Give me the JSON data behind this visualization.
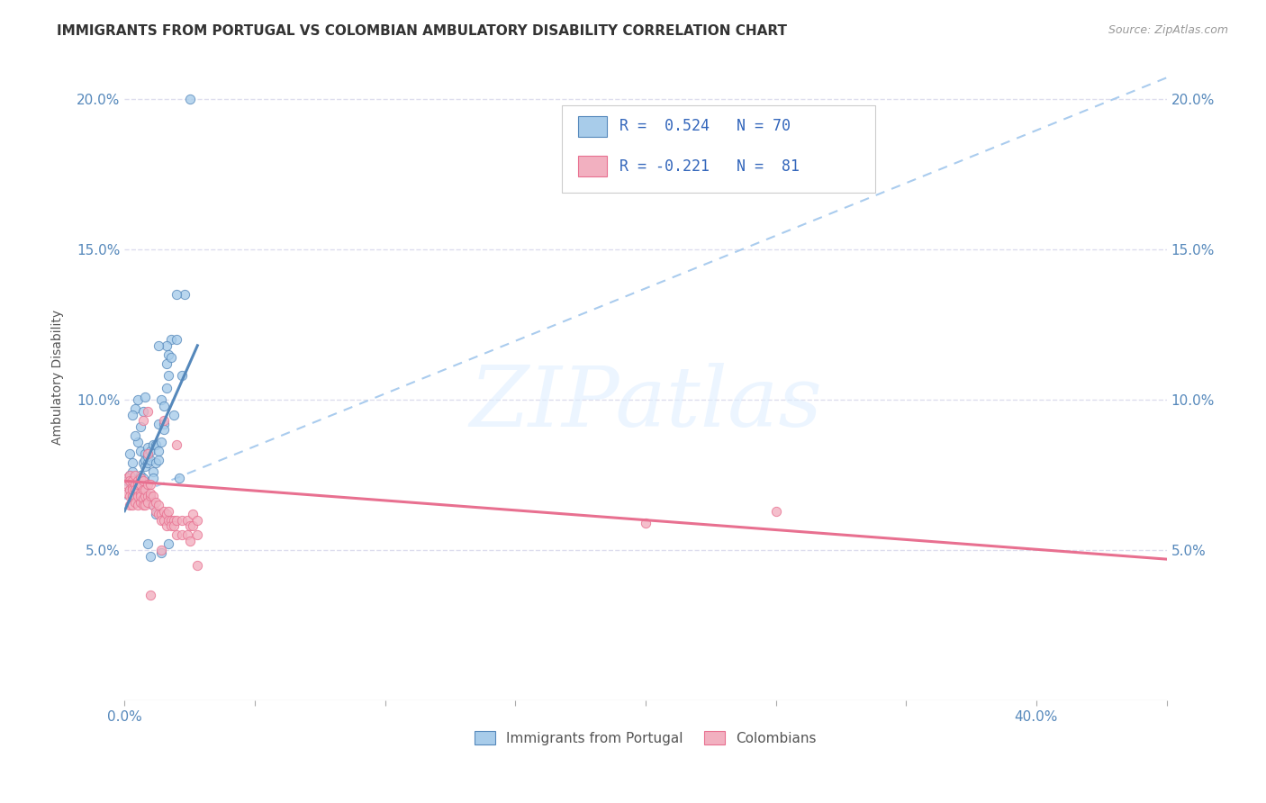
{
  "title": "IMMIGRANTS FROM PORTUGAL VS COLOMBIAN AMBULATORY DISABILITY CORRELATION CHART",
  "source": "Source: ZipAtlas.com",
  "ylabel": "Ambulatory Disability",
  "watermark": "ZIPatlas",
  "x_min": 0.0,
  "x_max": 0.4,
  "y_min": 0.0,
  "y_max": 0.215,
  "x_ticks_labeled": [
    0.0,
    0.4
  ],
  "x_ticks_labeled_str": [
    "0.0%",
    "40.0%"
  ],
  "x_ticks_minor": [
    0.05,
    0.1,
    0.15,
    0.2,
    0.25,
    0.3,
    0.35
  ],
  "y_ticks": [
    0.05,
    0.1,
    0.15,
    0.2
  ],
  "y_tick_labels": [
    "5.0%",
    "10.0%",
    "15.0%",
    "20.0%"
  ],
  "color_blue": "#A8CCEA",
  "color_pink": "#F2B0C0",
  "color_blue_line": "#5588BB",
  "color_pink_line": "#E87090",
  "color_dashed": "#AACCEE",
  "scatter_blue": [
    [
      0.001,
      0.073
    ],
    [
      0.002,
      0.075
    ],
    [
      0.002,
      0.07
    ],
    [
      0.002,
      0.082
    ],
    [
      0.003,
      0.074
    ],
    [
      0.003,
      0.076
    ],
    [
      0.003,
      0.079
    ],
    [
      0.004,
      0.073
    ],
    [
      0.004,
      0.069
    ],
    [
      0.004,
      0.097
    ],
    [
      0.004,
      0.071
    ],
    [
      0.005,
      0.1
    ],
    [
      0.005,
      0.07
    ],
    [
      0.005,
      0.068
    ],
    [
      0.006,
      0.083
    ],
    [
      0.006,
      0.072
    ],
    [
      0.006,
      0.075
    ],
    [
      0.007,
      0.079
    ],
    [
      0.007,
      0.074
    ],
    [
      0.007,
      0.07
    ],
    [
      0.008,
      0.082
    ],
    [
      0.008,
      0.078
    ],
    [
      0.008,
      0.08
    ],
    [
      0.009,
      0.079
    ],
    [
      0.009,
      0.081
    ],
    [
      0.009,
      0.084
    ],
    [
      0.01,
      0.083
    ],
    [
      0.01,
      0.068
    ],
    [
      0.01,
      0.08
    ],
    [
      0.011,
      0.085
    ],
    [
      0.011,
      0.076
    ],
    [
      0.011,
      0.074
    ],
    [
      0.012,
      0.085
    ],
    [
      0.012,
      0.079
    ],
    [
      0.013,
      0.083
    ],
    [
      0.013,
      0.092
    ],
    [
      0.013,
      0.08
    ],
    [
      0.014,
      0.086
    ],
    [
      0.014,
      0.1
    ],
    [
      0.015,
      0.092
    ],
    [
      0.015,
      0.098
    ],
    [
      0.015,
      0.09
    ],
    [
      0.016,
      0.104
    ],
    [
      0.016,
      0.112
    ],
    [
      0.017,
      0.115
    ],
    [
      0.017,
      0.108
    ],
    [
      0.018,
      0.12
    ],
    [
      0.018,
      0.114
    ],
    [
      0.019,
      0.095
    ],
    [
      0.02,
      0.12
    ],
    [
      0.021,
      0.074
    ],
    [
      0.022,
      0.108
    ],
    [
      0.023,
      0.135
    ],
    [
      0.025,
      0.2
    ],
    [
      0.009,
      0.052
    ],
    [
      0.01,
      0.048
    ],
    [
      0.016,
      0.118
    ],
    [
      0.02,
      0.135
    ],
    [
      0.007,
      0.096
    ],
    [
      0.008,
      0.101
    ],
    [
      0.013,
      0.118
    ],
    [
      0.006,
      0.091
    ],
    [
      0.005,
      0.086
    ],
    [
      0.003,
      0.095
    ],
    [
      0.004,
      0.088
    ],
    [
      0.014,
      0.049
    ],
    [
      0.017,
      0.052
    ],
    [
      0.011,
      0.065
    ],
    [
      0.012,
      0.062
    ],
    [
      0.006,
      0.067
    ],
    [
      0.007,
      0.066
    ]
  ],
  "scatter_pink": [
    [
      0.001,
      0.072
    ],
    [
      0.001,
      0.069
    ],
    [
      0.001,
      0.074
    ],
    [
      0.002,
      0.07
    ],
    [
      0.002,
      0.068
    ],
    [
      0.002,
      0.075
    ],
    [
      0.002,
      0.073
    ],
    [
      0.002,
      0.065
    ],
    [
      0.003,
      0.071
    ],
    [
      0.003,
      0.068
    ],
    [
      0.003,
      0.073
    ],
    [
      0.003,
      0.07
    ],
    [
      0.003,
      0.065
    ],
    [
      0.004,
      0.072
    ],
    [
      0.004,
      0.068
    ],
    [
      0.004,
      0.075
    ],
    [
      0.004,
      0.07
    ],
    [
      0.004,
      0.066
    ],
    [
      0.005,
      0.07
    ],
    [
      0.005,
      0.073
    ],
    [
      0.005,
      0.068
    ],
    [
      0.005,
      0.065
    ],
    [
      0.005,
      0.072
    ],
    [
      0.006,
      0.069
    ],
    [
      0.006,
      0.066
    ],
    [
      0.006,
      0.072
    ],
    [
      0.006,
      0.074
    ],
    [
      0.006,
      0.068
    ],
    [
      0.007,
      0.07
    ],
    [
      0.007,
      0.073
    ],
    [
      0.007,
      0.067
    ],
    [
      0.007,
      0.065
    ],
    [
      0.007,
      0.093
    ],
    [
      0.008,
      0.068
    ],
    [
      0.008,
      0.07
    ],
    [
      0.008,
      0.065
    ],
    [
      0.009,
      0.068
    ],
    [
      0.009,
      0.066
    ],
    [
      0.009,
      0.072
    ],
    [
      0.01,
      0.068
    ],
    [
      0.01,
      0.072
    ],
    [
      0.01,
      0.069
    ],
    [
      0.011,
      0.065
    ],
    [
      0.011,
      0.068
    ],
    [
      0.012,
      0.063
    ],
    [
      0.012,
      0.066
    ],
    [
      0.013,
      0.062
    ],
    [
      0.013,
      0.065
    ],
    [
      0.014,
      0.062
    ],
    [
      0.014,
      0.06
    ],
    [
      0.015,
      0.063
    ],
    [
      0.015,
      0.06
    ],
    [
      0.016,
      0.062
    ],
    [
      0.016,
      0.058
    ],
    [
      0.017,
      0.063
    ],
    [
      0.017,
      0.06
    ],
    [
      0.018,
      0.06
    ],
    [
      0.018,
      0.058
    ],
    [
      0.019,
      0.06
    ],
    [
      0.019,
      0.058
    ],
    [
      0.02,
      0.06
    ],
    [
      0.02,
      0.055
    ],
    [
      0.022,
      0.06
    ],
    [
      0.022,
      0.055
    ],
    [
      0.024,
      0.06
    ],
    [
      0.024,
      0.055
    ],
    [
      0.025,
      0.058
    ],
    [
      0.025,
      0.053
    ],
    [
      0.026,
      0.062
    ],
    [
      0.026,
      0.058
    ],
    [
      0.028,
      0.06
    ],
    [
      0.028,
      0.055
    ],
    [
      0.009,
      0.082
    ],
    [
      0.009,
      0.096
    ],
    [
      0.02,
      0.085
    ],
    [
      0.015,
      0.093
    ],
    [
      0.01,
      0.035
    ],
    [
      0.2,
      0.059
    ],
    [
      0.25,
      0.063
    ],
    [
      0.028,
      0.045
    ],
    [
      0.014,
      0.05
    ]
  ],
  "blue_line_x": [
    0.0,
    0.028
  ],
  "blue_line_y": [
    0.063,
    0.118
  ],
  "pink_line_x": [
    0.0,
    0.4
  ],
  "pink_line_y": [
    0.073,
    0.047
  ],
  "dashed_line_x": [
    0.0,
    0.4
  ],
  "dashed_line_y": [
    0.067,
    0.207
  ]
}
